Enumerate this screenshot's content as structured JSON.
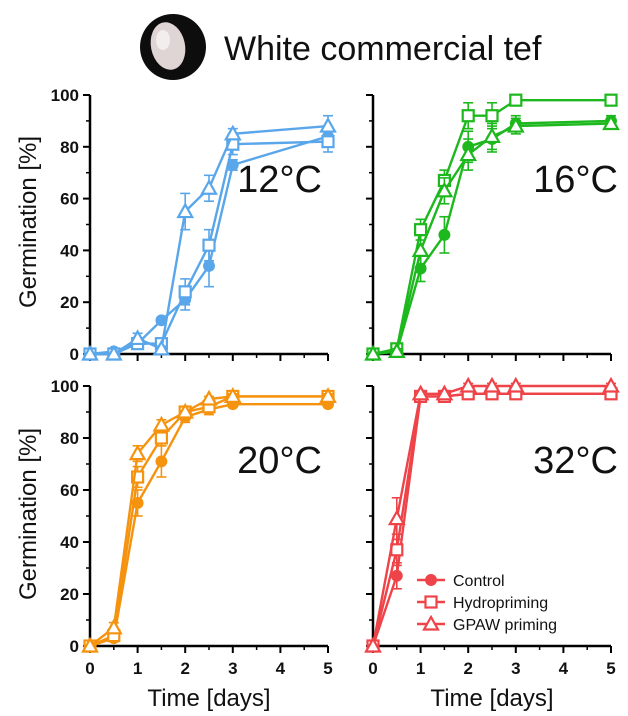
{
  "figure": {
    "title": "White commercial tef",
    "ylabel": "Germination [%]",
    "xlabel": "Time [days]"
  },
  "legend": [
    {
      "label": "Control",
      "marker": "circle"
    },
    {
      "label": "Hydropriming",
      "marker": "square"
    },
    {
      "label": "GPAW priming",
      "marker": "triangle"
    }
  ],
  "chart_data": [
    {
      "type": "line",
      "panel_label": "12°C",
      "color": "#5aa6ea",
      "xlim": [
        0,
        5
      ],
      "ylim": [
        0,
        100
      ],
      "xticks": [
        0,
        1,
        2,
        3,
        4,
        5
      ],
      "yticks": [
        0,
        20,
        40,
        60,
        80,
        100
      ],
      "grid": false,
      "series": [
        {
          "name": "Control",
          "marker": "circle",
          "x": [
            0,
            0.5,
            1,
            1.5,
            2,
            2.5,
            3,
            5
          ],
          "y": [
            0,
            1,
            4,
            13,
            21,
            34,
            73,
            84
          ],
          "err": [
            0,
            0,
            2,
            1,
            4,
            8,
            2,
            3
          ]
        },
        {
          "name": "Hydropriming",
          "marker": "square",
          "x": [
            0,
            0.5,
            1,
            1.5,
            2,
            2.5,
            3,
            5
          ],
          "y": [
            0,
            0,
            4,
            4,
            24,
            42,
            81,
            82
          ],
          "err": [
            0,
            0,
            1,
            2,
            5,
            6,
            4,
            4
          ]
        },
        {
          "name": "GPAW priming",
          "marker": "triangle",
          "x": [
            0,
            0.5,
            1,
            1.5,
            2,
            2.5,
            3,
            5
          ],
          "y": [
            0,
            0,
            6,
            2,
            55,
            64,
            85,
            88
          ],
          "err": [
            0,
            0,
            2,
            1,
            7,
            5,
            2,
            4
          ]
        }
      ]
    },
    {
      "type": "line",
      "panel_label": "16°C",
      "color": "#1db81d",
      "xlim": [
        0,
        5
      ],
      "ylim": [
        0,
        100
      ],
      "xticks": [
        0,
        1,
        2,
        3,
        4,
        5
      ],
      "yticks": [
        0,
        20,
        40,
        60,
        80,
        100
      ],
      "grid": false,
      "series": [
        {
          "name": "Control",
          "marker": "circle",
          "x": [
            0,
            0.5,
            1,
            1.5,
            2,
            2.5,
            3,
            5
          ],
          "y": [
            0,
            1,
            33,
            46,
            80,
            83,
            89,
            90
          ],
          "err": [
            0,
            1,
            5,
            7,
            6,
            5,
            3,
            2
          ]
        },
        {
          "name": "Hydropriming",
          "marker": "square",
          "x": [
            0,
            0.5,
            1,
            1.5,
            2,
            2.5,
            3,
            5
          ],
          "y": [
            0,
            2,
            48,
            67,
            92,
            92,
            98,
            98
          ],
          "err": [
            0,
            1,
            4,
            4,
            5,
            5,
            1,
            1
          ]
        },
        {
          "name": "GPAW priming",
          "marker": "triangle",
          "x": [
            0,
            0.5,
            1,
            1.5,
            2,
            2.5,
            3,
            5
          ],
          "y": [
            0,
            1,
            40,
            63,
            77,
            84,
            88,
            89
          ],
          "err": [
            0,
            1,
            6,
            5,
            6,
            5,
            3,
            2
          ]
        }
      ]
    },
    {
      "type": "line",
      "panel_label": "20°C",
      "color": "#f5930f",
      "xlim": [
        0,
        5
      ],
      "ylim": [
        0,
        100
      ],
      "xticks": [
        0,
        1,
        2,
        3,
        4,
        5
      ],
      "yticks": [
        0,
        20,
        40,
        60,
        80,
        100
      ],
      "grid": false,
      "series": [
        {
          "name": "Control",
          "marker": "circle",
          "x": [
            0,
            0.5,
            1,
            1.5,
            2,
            2.5,
            3,
            5
          ],
          "y": [
            0,
            3,
            55,
            71,
            88,
            91,
            93,
            93
          ],
          "err": [
            0,
            1,
            5,
            6,
            2,
            2,
            1,
            1
          ]
        },
        {
          "name": "Hydropriming",
          "marker": "square",
          "x": [
            0,
            0.5,
            1,
            1.5,
            2,
            2.5,
            3,
            5
          ],
          "y": [
            0,
            4,
            65,
            80,
            90,
            92,
            96,
            96
          ],
          "err": [
            0,
            1,
            4,
            3,
            2,
            2,
            1,
            1
          ]
        },
        {
          "name": "GPAW priming",
          "marker": "triangle",
          "x": [
            0,
            0.5,
            1,
            1.5,
            2,
            2.5,
            3,
            5
          ],
          "y": [
            0,
            7,
            74,
            85,
            90,
            95,
            96,
            96
          ],
          "err": [
            0,
            2,
            3,
            2,
            2,
            1,
            1,
            1
          ]
        }
      ]
    },
    {
      "type": "line",
      "panel_label": "32°C",
      "color": "#ee4449",
      "xlim": [
        0,
        5
      ],
      "ylim": [
        0,
        100
      ],
      "xticks": [
        0,
        1,
        2,
        3,
        4,
        5
      ],
      "yticks": [
        0,
        20,
        40,
        60,
        80,
        100
      ],
      "grid": false,
      "series": [
        {
          "name": "Control",
          "marker": "circle",
          "x": [
            0,
            0.5,
            1,
            1.5,
            2,
            2.5,
            3,
            5
          ],
          "y": [
            0,
            27,
            96,
            96,
            97,
            97,
            97,
            97
          ],
          "err": [
            0,
            5,
            1,
            1,
            1,
            1,
            1,
            1
          ]
        },
        {
          "name": "Hydropriming",
          "marker": "square",
          "x": [
            0,
            0.5,
            1,
            1.5,
            2,
            2.5,
            3,
            5
          ],
          "y": [
            0,
            37,
            96,
            96,
            97,
            97,
            97,
            97
          ],
          "err": [
            0,
            6,
            1,
            1,
            1,
            1,
            1,
            1
          ]
        },
        {
          "name": "GPAW priming",
          "marker": "triangle",
          "x": [
            0,
            0.5,
            1,
            1.5,
            2,
            2.5,
            3,
            5
          ],
          "y": [
            0,
            49,
            97,
            97,
            100,
            100,
            100,
            100
          ],
          "err": [
            0,
            8,
            1,
            1,
            1,
            1,
            1,
            1
          ]
        }
      ]
    }
  ]
}
